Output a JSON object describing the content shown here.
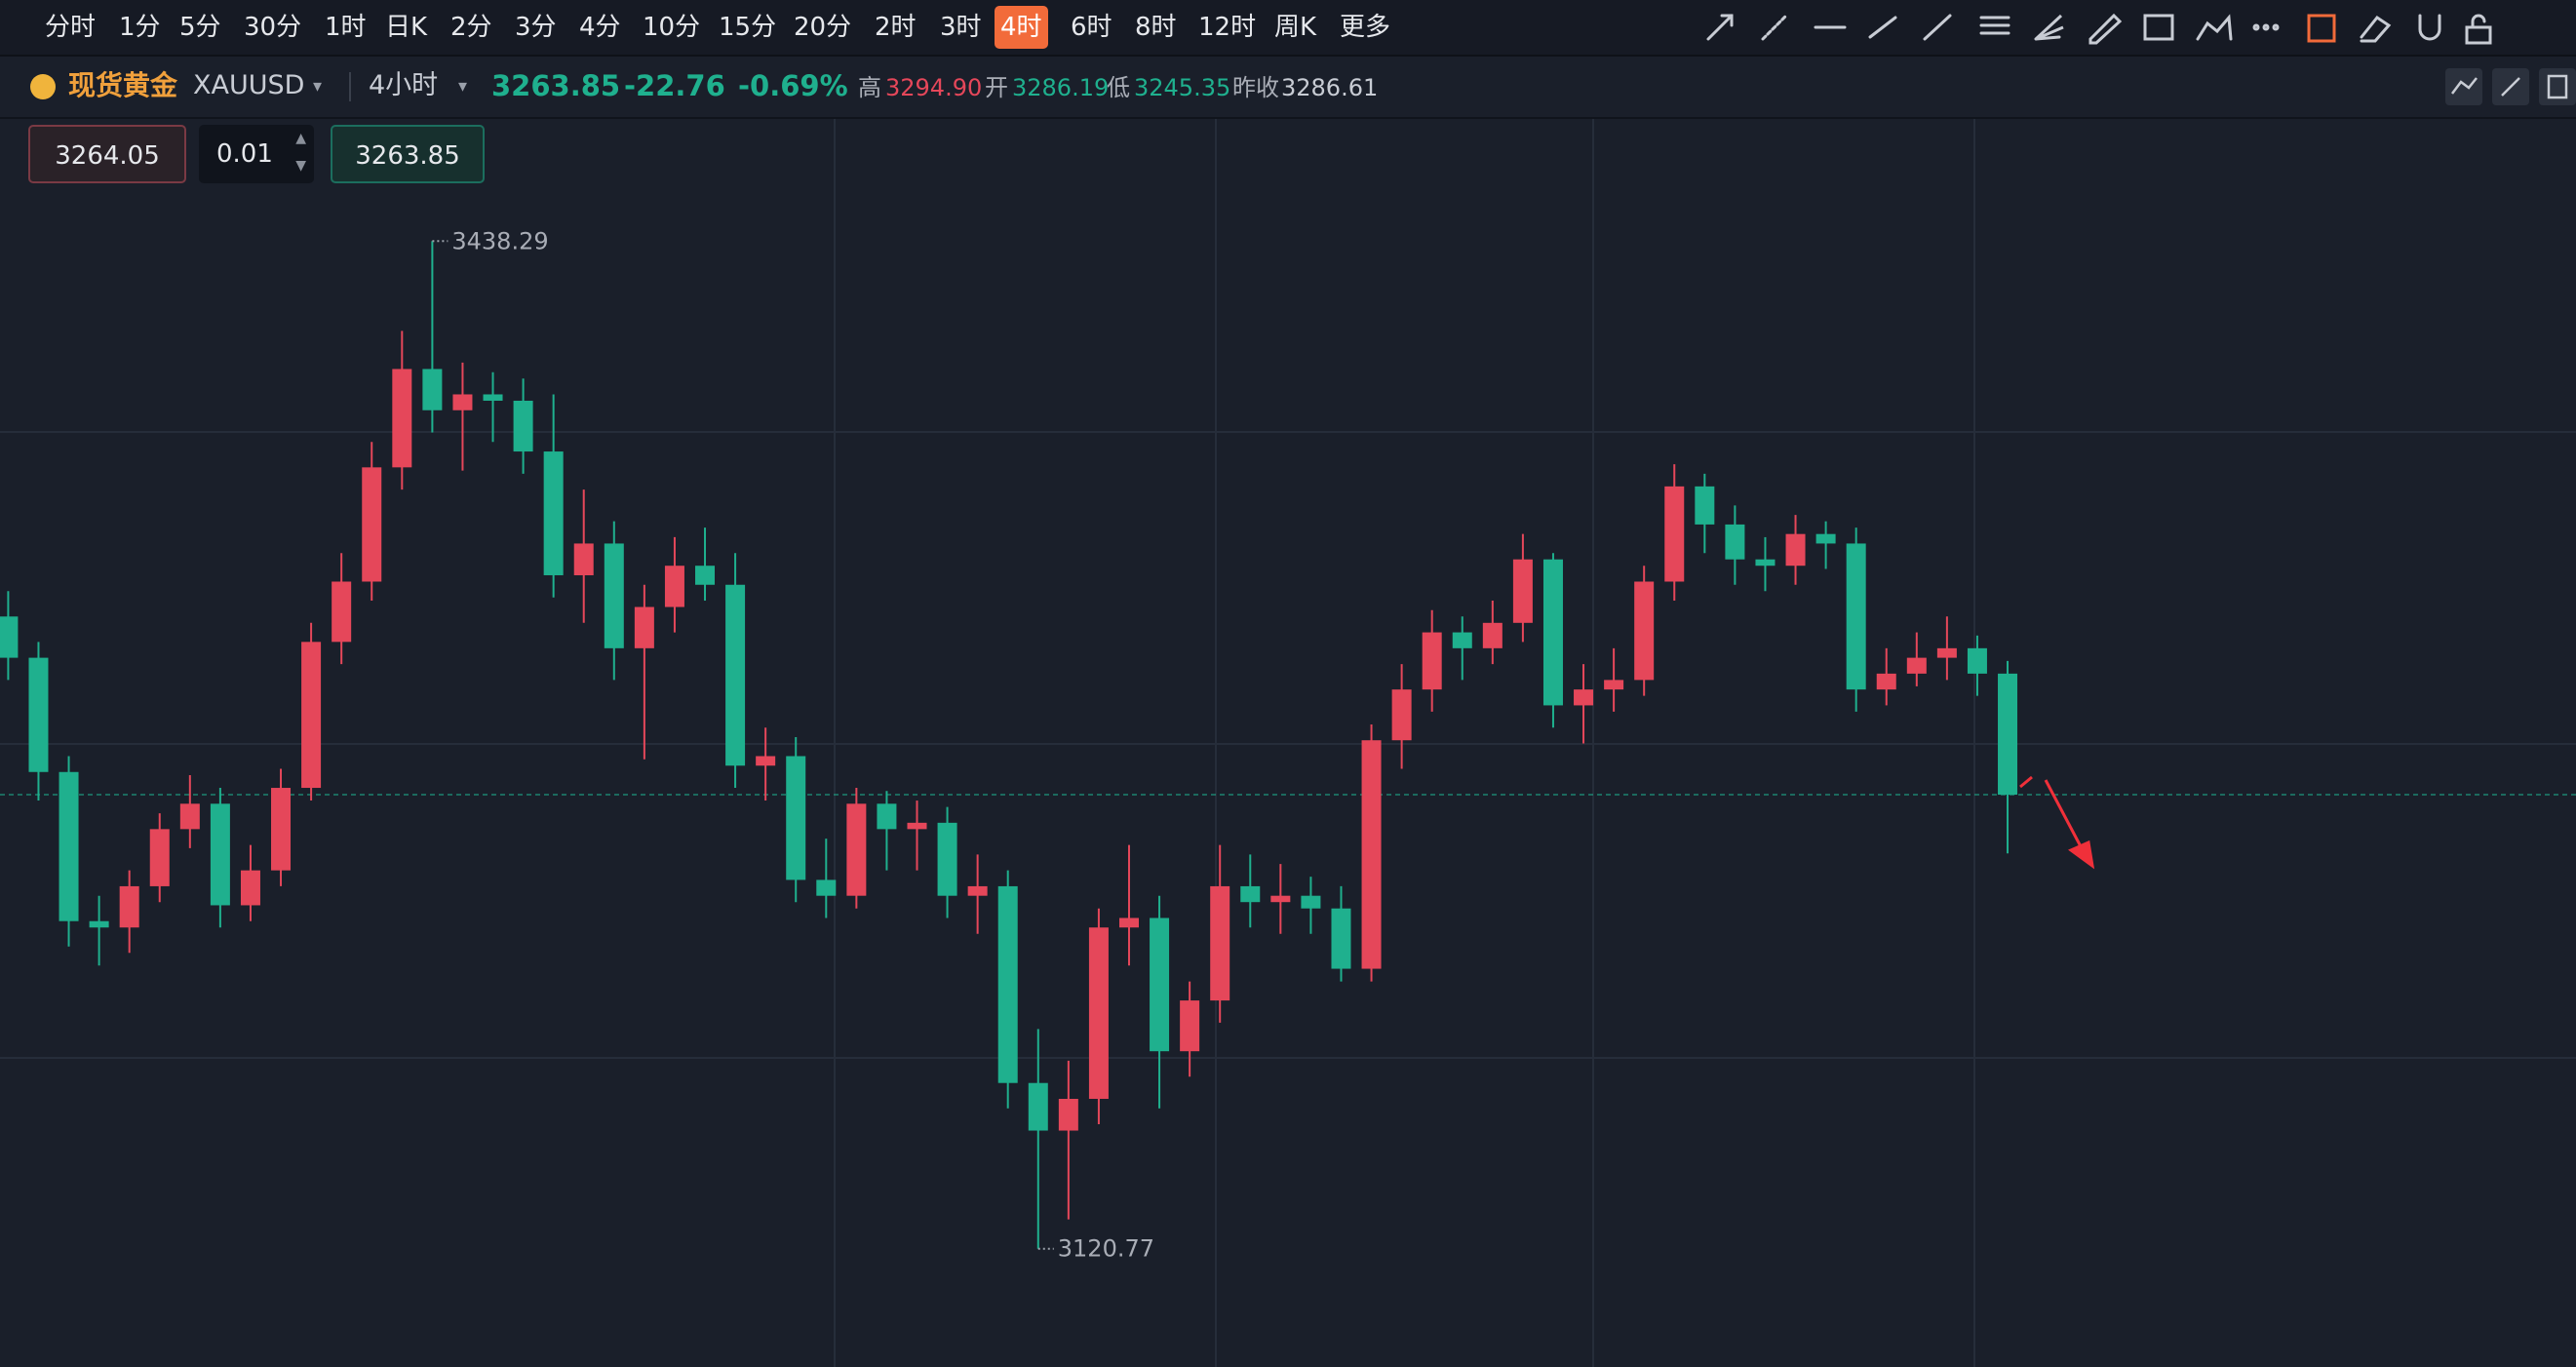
{
  "toolbar": {
    "periods": [
      "分时",
      "1分",
      "5分",
      "30分",
      "1时",
      "日K",
      "2分",
      "3分",
      "4分",
      "10分",
      "15分",
      "20分",
      "2时",
      "3时",
      "4时",
      "6时",
      "8时",
      "12时",
      "周K",
      "更多"
    ],
    "active": "4时"
  },
  "header": {
    "name": "现货黄金",
    "symbol": "XAUUSD",
    "period": "4小时",
    "price": "3263.85",
    "change": "-22.76",
    "change_pct": "-0.69%",
    "high_label": "高",
    "high": "3294.90",
    "open_label": "开",
    "open": "3286.19",
    "low_label": "低",
    "low": "3245.35",
    "prev_label": "昨收",
    "prev": "3286.61"
  },
  "order": {
    "sell": "3264.05",
    "qty": "0.01",
    "buy": "3263.85"
  },
  "chart_data": {
    "type": "candlestick",
    "ylim": [
      3083.5,
      3477.1
    ],
    "up_color": "#e5475a",
    "down_color": "#1fb08e",
    "open": [
      3320,
      3307,
      3271,
      3224,
      3222,
      3235,
      3253,
      3261,
      3229,
      3240,
      3266,
      3312,
      3331,
      3367,
      3398,
      3385,
      3390,
      3388,
      3372,
      3333,
      3343,
      3310,
      3323,
      3336,
      3330,
      3273,
      3276,
      3237,
      3232,
      3261,
      3253,
      3255,
      3232,
      3235,
      3173,
      3158,
      3168,
      3222,
      3225,
      3183,
      3199,
      3235,
      3230,
      3232,
      3228,
      3209,
      3281,
      3297,
      3315,
      3310,
      3318,
      3338,
      3292,
      3297,
      3300,
      3331,
      3361,
      3349,
      3338,
      3336,
      3346,
      3343,
      3297,
      3302,
      3307,
      3310,
      3302
    ],
    "high": [
      3328,
      3312,
      3276,
      3232,
      3240,
      3258,
      3270,
      3266,
      3248,
      3272,
      3318,
      3340,
      3375,
      3410,
      3438.29,
      3400,
      3397,
      3395,
      3390,
      3360,
      3350,
      3330,
      3345,
      3348,
      3340,
      3285,
      3282,
      3250,
      3266,
      3265,
      3262,
      3260,
      3245,
      3240,
      3190,
      3180,
      3228,
      3248,
      3232,
      3205,
      3248,
      3245,
      3242,
      3238,
      3235,
      3286,
      3305,
      3322,
      3320,
      3325,
      3346,
      3340,
      3305,
      3310,
      3336,
      3368,
      3365,
      3355,
      3345,
      3352,
      3350,
      3348,
      3310,
      3315,
      3320,
      3314,
      3306
    ],
    "low": [
      3300,
      3262,
      3216,
      3210,
      3214,
      3230,
      3247,
      3222,
      3224,
      3235,
      3262,
      3305,
      3325,
      3360,
      3378,
      3366,
      3375,
      3365,
      3326,
      3318,
      3300,
      3275,
      3315,
      3325,
      3266,
      3262,
      3230,
      3225,
      3228,
      3240,
      3240,
      3225,
      3220,
      3165,
      3120.77,
      3130,
      3160,
      3210,
      3165,
      3175,
      3192,
      3222,
      3220,
      3220,
      3205,
      3205,
      3272,
      3290,
      3300,
      3305,
      3312,
      3285,
      3280,
      3290,
      3295,
      3325,
      3340,
      3330,
      3328,
      3330,
      3335,
      3290,
      3292,
      3298,
      3300,
      3295,
      3245.35
    ],
    "close": [
      3307,
      3271,
      3224,
      3222,
      3235,
      3253,
      3261,
      3229,
      3240,
      3266,
      3312,
      3331,
      3367,
      3398,
      3385,
      3390,
      3388,
      3372,
      3333,
      3343,
      3310,
      3323,
      3336,
      3330,
      3273,
      3276,
      3237,
      3232,
      3261,
      3253,
      3255,
      3232,
      3235,
      3173,
      3158,
      3168,
      3222,
      3225,
      3183,
      3199,
      3235,
      3230,
      3232,
      3228,
      3209,
      3281,
      3297,
      3315,
      3310,
      3318,
      3338,
      3292,
      3297,
      3300,
      3331,
      3361,
      3349,
      3338,
      3336,
      3346,
      3343,
      3297,
      3302,
      3307,
      3310,
      3302,
      3263.85
    ]
  }
}
